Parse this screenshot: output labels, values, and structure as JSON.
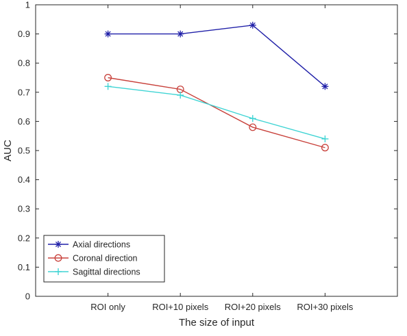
{
  "chart_data": {
    "type": "line",
    "title": "",
    "xlabel": "The size of input",
    "ylabel": "AUC",
    "categories": [
      "ROI only",
      "ROI+10 pixels",
      "ROI+20 pixels",
      "ROI+30 pixels"
    ],
    "ylim": [
      0,
      1
    ],
    "yticks": [
      "0",
      "0.1",
      "0.2",
      "0.3",
      "0.4",
      "0.5",
      "0.6",
      "0.7",
      "0.8",
      "0.9",
      "1"
    ],
    "grid": false,
    "legend_position": "bottom-left",
    "series": [
      {
        "name": "Axial directions",
        "values": [
          0.9,
          0.9,
          0.93,
          0.72
        ],
        "color": "#1f1fa8",
        "marker": "asterisk"
      },
      {
        "name": "Coronal direction",
        "values": [
          0.75,
          0.71,
          0.58,
          0.51
        ],
        "color": "#c8413b",
        "marker": "circle"
      },
      {
        "name": "Sagittal directions",
        "values": [
          0.72,
          0.69,
          0.61,
          0.54
        ],
        "color": "#3fd4d4",
        "marker": "plus"
      }
    ]
  }
}
